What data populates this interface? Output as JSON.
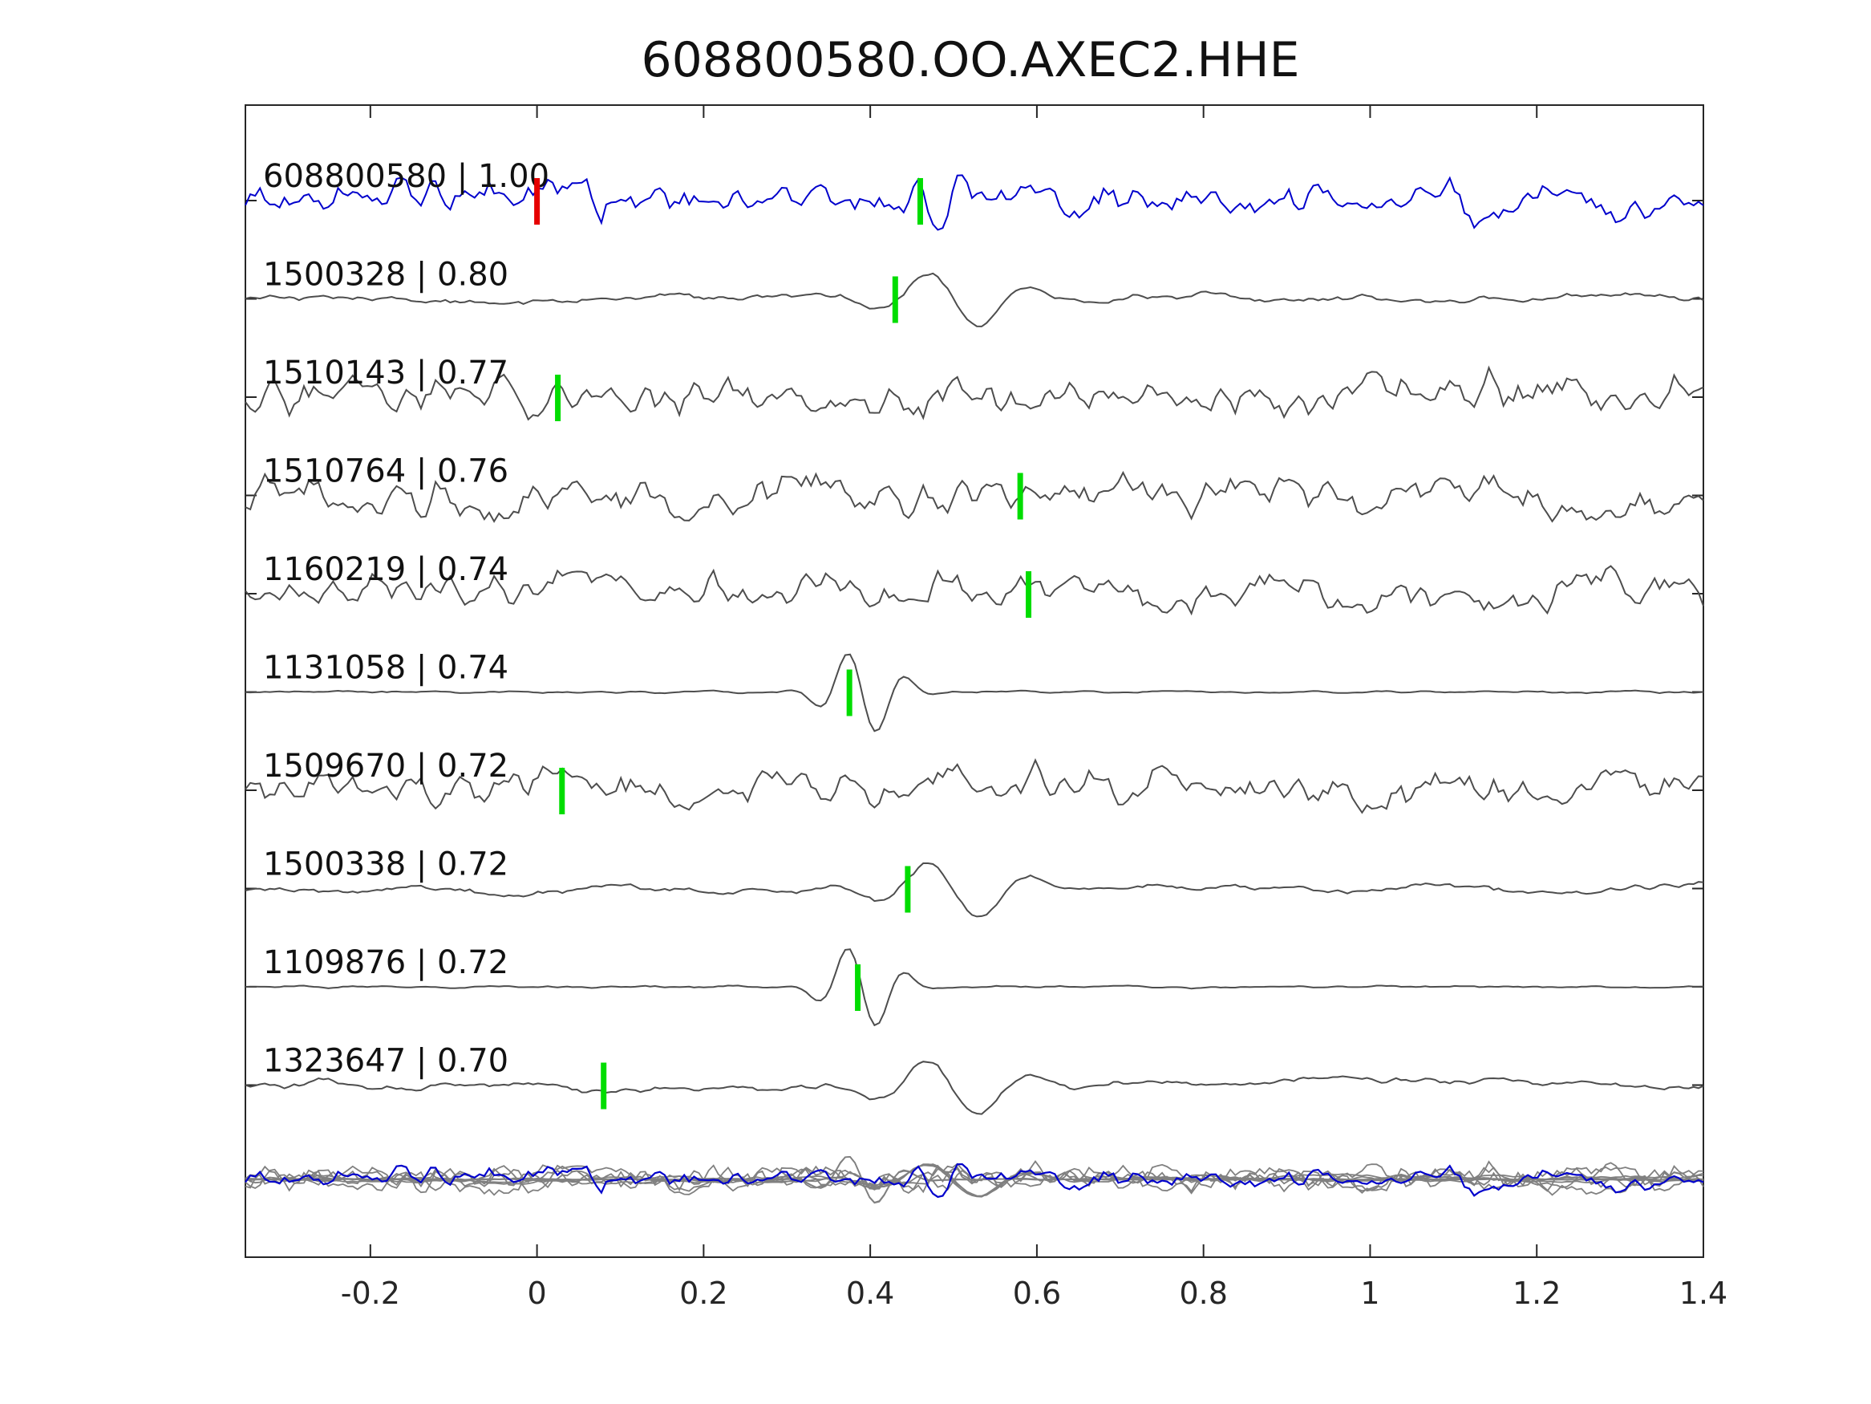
{
  "chart_data": {
    "type": "line",
    "title": "608800580.OO.AXEC2.HHE",
    "xlabel": "",
    "ylabel": "",
    "xlim": [
      -0.35,
      1.4
    ],
    "xticks": [
      -0.2,
      0,
      0.2,
      0.4,
      0.6,
      0.8,
      1,
      1.2,
      1.4
    ],
    "xtick_labels": [
      "-0.2",
      "0",
      "0.2",
      "0.4",
      "0.6",
      "0.8",
      "1",
      "1.2",
      "1.4"
    ],
    "grid": false,
    "legend": "none",
    "colors": {
      "reference": "#0000cc",
      "match": "#4d4d4d",
      "stack": "#808080",
      "pick_reference": "#e60000",
      "pick_match": "#00dd00",
      "axes": "#262626"
    },
    "traces": [
      {
        "id": "608800580",
        "cc": "1.00",
        "label": "608800580 | 1.00",
        "role": "reference",
        "style": "noisy",
        "picks": [
          {
            "x": 0.0,
            "color": "red"
          },
          {
            "x": 0.46,
            "color": "green"
          }
        ]
      },
      {
        "id": "1500328",
        "cc": "0.80",
        "label": "1500328 | 0.80",
        "role": "match",
        "style": "smooth",
        "picks": [
          {
            "x": 0.43,
            "color": "green"
          }
        ]
      },
      {
        "id": "1510143",
        "cc": "0.77",
        "label": "1510143 | 0.77",
        "role": "match",
        "style": "noisy",
        "picks": [
          {
            "x": 0.025,
            "color": "green"
          }
        ]
      },
      {
        "id": "1510764",
        "cc": "0.76",
        "label": "1510764 | 0.76",
        "role": "match",
        "style": "noisy",
        "picks": [
          {
            "x": 0.58,
            "color": "green"
          }
        ]
      },
      {
        "id": "1160219",
        "cc": "0.74",
        "label": "1160219 | 0.74",
        "role": "match",
        "style": "noisy",
        "picks": [
          {
            "x": 0.59,
            "color": "green"
          }
        ]
      },
      {
        "id": "1131058",
        "cc": "0.74",
        "label": "1131058 | 0.74",
        "role": "match",
        "style": "pulse",
        "picks": [
          {
            "x": 0.375,
            "color": "green"
          }
        ]
      },
      {
        "id": "1509670",
        "cc": "0.72",
        "label": "1509670 | 0.72",
        "role": "match",
        "style": "noisy",
        "picks": [
          {
            "x": 0.03,
            "color": "green"
          }
        ]
      },
      {
        "id": "1500338",
        "cc": "0.72",
        "label": "1500338 | 0.72",
        "role": "match",
        "style": "smooth",
        "picks": [
          {
            "x": 0.445,
            "color": "green"
          }
        ]
      },
      {
        "id": "1109876",
        "cc": "0.72",
        "label": "1109876 | 0.72",
        "role": "match",
        "style": "pulse",
        "picks": [
          {
            "x": 0.385,
            "color": "green"
          }
        ]
      },
      {
        "id": "1323647",
        "cc": "0.70",
        "label": "1323647 | 0.70",
        "role": "match",
        "style": "smooth",
        "picks": [
          {
            "x": 0.08,
            "color": "green"
          }
        ]
      }
    ],
    "stack_overlay": true
  }
}
